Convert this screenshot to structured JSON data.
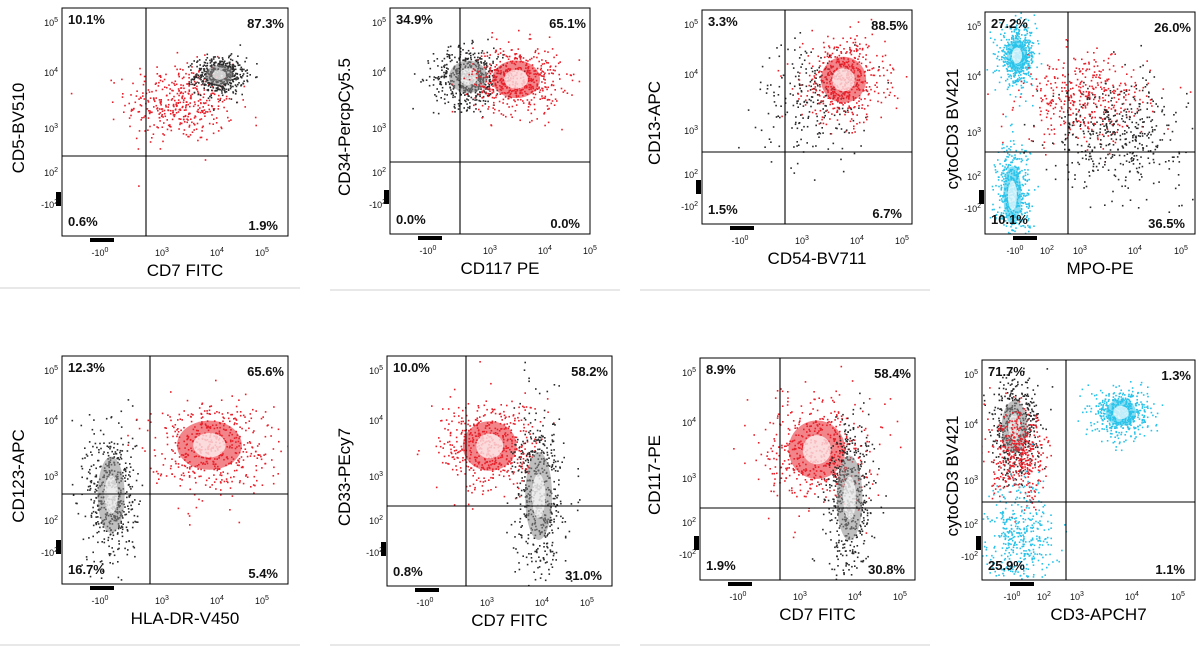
{
  "figure": {
    "tick_labels": {
      "y": [
        "10^5",
        "10^4",
        "10^3",
        "10^2",
        "-10^2"
      ],
      "x": [
        "-10^0",
        "10^3",
        "10^4",
        "10^5"
      ],
      "alt_x": [
        "-10^0",
        "10^2",
        "10^3",
        "10^4",
        "10^5"
      ]
    },
    "colors": {
      "gray": "#2a2a2a",
      "red": "#e8202a",
      "cyan": "#29c3ea",
      "white_core": "#ffffff"
    }
  },
  "chart_data": [
    {
      "type": "scatter",
      "xlabel": "CD7 FITC",
      "ylabel": "CD5-BV510",
      "quadrants": {
        "upper_left": "10.1%",
        "upper_right": "87.3%",
        "lower_left": "0.6%",
        "lower_right": "1.9%"
      },
      "populations": [
        {
          "color": "red",
          "cx": 3.1,
          "cy": 3.4,
          "sx": 0.55,
          "sy": 0.4,
          "density": "dense"
        },
        {
          "color": "gray",
          "cx": 3.9,
          "cy": 3.95,
          "sx": 0.25,
          "sy": 0.18,
          "density": "core"
        }
      ]
    },
    {
      "type": "scatter",
      "xlabel": "CD117 PE",
      "ylabel": "CD34-PercpCy5.5",
      "quadrants": {
        "upper_left": "34.9%",
        "upper_right": "65.1%",
        "lower_left": "0.0%",
        "lower_right": "0.0%"
      },
      "populations": [
        {
          "color": "gray",
          "cx": 2.5,
          "cy": 3.9,
          "sx": 0.4,
          "sy": 0.3,
          "density": "core"
        },
        {
          "color": "red",
          "cx": 3.6,
          "cy": 3.85,
          "sx": 0.5,
          "sy": 0.35,
          "density": "core"
        }
      ]
    },
    {
      "type": "scatter",
      "xlabel": "CD54-BV711",
      "ylabel": "CD13-APC",
      "quadrants": {
        "upper_left": "3.3%",
        "upper_right": "88.5%",
        "lower_left": "1.5%",
        "lower_right": "6.7%"
      },
      "populations": [
        {
          "color": "gray",
          "cx": 3.1,
          "cy": 3.4,
          "sx": 0.6,
          "sy": 0.6,
          "density": "sparse"
        },
        {
          "color": "red",
          "cx": 3.8,
          "cy": 3.8,
          "sx": 0.45,
          "sy": 0.45,
          "density": "core"
        }
      ]
    },
    {
      "type": "scatter",
      "xlabel": "MPO-PE",
      "ylabel": "cytoCD3 BV421",
      "quadrants": {
        "upper_left": "27.2%",
        "upper_right": "26.0%",
        "lower_left": "10.1%",
        "lower_right": "36.5%"
      },
      "populations": [
        {
          "color": "cyan",
          "cx": 1.4,
          "cy": 4.4,
          "sx": 0.2,
          "sy": 0.3,
          "density": "core"
        },
        {
          "color": "cyan",
          "cx": 1.3,
          "cy": 1.5,
          "sx": 0.18,
          "sy": 0.55,
          "density": "core"
        },
        {
          "color": "red",
          "cx": 2.9,
          "cy": 3.5,
          "sx": 0.7,
          "sy": 0.45,
          "density": "dense"
        },
        {
          "color": "gray",
          "cx": 3.6,
          "cy": 2.8,
          "sx": 0.7,
          "sy": 0.55,
          "density": "dense"
        }
      ]
    },
    {
      "type": "scatter",
      "xlabel": "HLA-DR-V450",
      "ylabel": "CD123-APC",
      "quadrants": {
        "upper_left": "12.3%",
        "upper_right": "65.6%",
        "lower_left": "16.7%",
        "lower_right": "5.4%"
      },
      "populations": [
        {
          "color": "gray",
          "cx": 1.7,
          "cy": 2.5,
          "sx": 0.25,
          "sy": 0.7,
          "density": "core"
        },
        {
          "color": "red",
          "cx": 3.7,
          "cy": 3.5,
          "sx": 0.6,
          "sy": 0.45,
          "density": "core"
        }
      ]
    },
    {
      "type": "scatter",
      "xlabel": "CD7 FITC",
      "ylabel": "CD33-PEcy7",
      "quadrants": {
        "upper_left": "10.0%",
        "upper_right": "58.2%",
        "lower_left": "0.8%",
        "lower_right": "31.0%"
      },
      "populations": [
        {
          "color": "red",
          "cx": 2.8,
          "cy": 3.5,
          "sx": 0.5,
          "sy": 0.45,
          "density": "core"
        },
        {
          "color": "gray",
          "cx": 3.8,
          "cy": 2.5,
          "sx": 0.25,
          "sy": 0.8,
          "density": "core"
        }
      ]
    },
    {
      "type": "scatter",
      "xlabel": "CD7 FITC",
      "ylabel": "CD117-PE",
      "quadrants": {
        "upper_left": "8.9%",
        "upper_right": "58.4%",
        "lower_left": "1.9%",
        "lower_right": "30.8%"
      },
      "populations": [
        {
          "color": "red",
          "cx": 3.2,
          "cy": 3.4,
          "sx": 0.55,
          "sy": 0.55,
          "density": "core"
        },
        {
          "color": "gray",
          "cx": 3.9,
          "cy": 2.4,
          "sx": 0.25,
          "sy": 0.8,
          "density": "core"
        }
      ]
    },
    {
      "type": "scatter",
      "xlabel": "CD3-APCH7",
      "ylabel": "cytoCD3 BV421",
      "quadrants": {
        "upper_left": "71.7%",
        "upper_right": "1.3%",
        "lower_left": "25.9%",
        "lower_right": "1.1%"
      },
      "populations": [
        {
          "color": "gray",
          "cx": 1.4,
          "cy": 3.9,
          "sx": 0.25,
          "sy": 0.5,
          "density": "core"
        },
        {
          "color": "red",
          "cx": 1.5,
          "cy": 3.3,
          "sx": 0.3,
          "sy": 0.45,
          "density": "dense"
        },
        {
          "color": "cyan",
          "cx": 1.5,
          "cy": 1.6,
          "sx": 0.35,
          "sy": 0.6,
          "density": "dense"
        },
        {
          "color": "cyan",
          "cx": 3.7,
          "cy": 4.2,
          "sx": 0.3,
          "sy": 0.25,
          "density": "core"
        }
      ]
    }
  ]
}
